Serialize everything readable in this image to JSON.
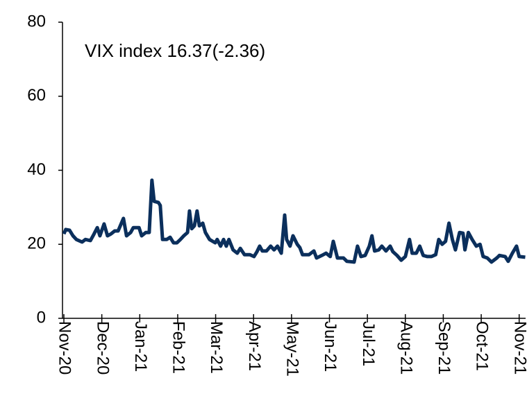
{
  "chart_data": {
    "type": "line",
    "annotation": "VIX index 16.37(-2.36)",
    "xlim": [
      0,
      12.17
    ],
    "xticks": [
      {
        "value": 0,
        "label": "Nov-20"
      },
      {
        "value": 1,
        "label": "Dec-20"
      },
      {
        "value": 2,
        "label": "Jan-21"
      },
      {
        "value": 3,
        "label": "Feb-21"
      },
      {
        "value": 4,
        "label": "Mar-21"
      },
      {
        "value": 5,
        "label": "Apr-21"
      },
      {
        "value": 6,
        "label": "May-21"
      },
      {
        "value": 7,
        "label": "Jun-21"
      },
      {
        "value": 8,
        "label": "Jul-21"
      },
      {
        "value": 9,
        "label": "Aug-21"
      },
      {
        "value": 10,
        "label": "Sep-21"
      },
      {
        "value": 11,
        "label": "Oct-21"
      },
      {
        "value": 12,
        "label": "Nov-21"
      }
    ],
    "ylim": [
      0,
      80
    ],
    "yticks": [
      0,
      20,
      40,
      60,
      80
    ],
    "color": "#0b2f5c",
    "x": [
      0,
      0.05,
      0.15,
      0.24,
      0.33,
      0.48,
      0.57,
      0.7,
      0.79,
      0.88,
      0.95,
      1.06,
      1.15,
      1.24,
      1.34,
      1.43,
      1.57,
      1.65,
      1.76,
      1.83,
      1.91,
      1.98,
      2.05,
      2.16,
      2.25,
      2.32,
      2.38,
      2.49,
      2.54,
      2.6,
      2.71,
      2.8,
      2.89,
      2.98,
      3.07,
      3.16,
      3.26,
      3.31,
      3.37,
      3.44,
      3.51,
      3.57,
      3.66,
      3.73,
      3.84,
      3.99,
      4.04,
      4.13,
      4.21,
      4.28,
      4.35,
      4.46,
      4.57,
      4.65,
      4.76,
      4.9,
      5.01,
      5.09,
      5.16,
      5.23,
      5.34,
      5.45,
      5.54,
      5.63,
      5.73,
      5.82,
      5.87,
      5.96,
      6.04,
      6.15,
      6.22,
      6.29,
      6.46,
      6.59,
      6.66,
      6.8,
      6.91,
      7.02,
      7.1,
      7.21,
      7.37,
      7.46,
      7.65,
      7.74,
      7.83,
      7.94,
      8.05,
      8.12,
      8.19,
      8.3,
      8.38,
      8.49,
      8.6,
      8.67,
      8.78,
      8.89,
      9.0,
      9.11,
      9.18,
      9.29,
      9.38,
      9.47,
      9.58,
      9.69,
      9.8,
      9.88,
      9.97,
      10.06,
      10.15,
      10.24,
      10.32,
      10.43,
      10.52,
      10.57,
      10.66,
      10.76,
      10.87,
      10.97,
      11.05,
      11.16,
      11.27,
      11.41,
      11.48,
      11.63,
      11.71,
      11.82,
      11.93,
      12.0,
      12.16
    ],
    "values": [
      22.8,
      24,
      23.8,
      22.3,
      21.3,
      20.6,
      21.3,
      21,
      22.7,
      24.5,
      22.3,
      25.5,
      22.3,
      22.8,
      23.6,
      23.6,
      27,
      22.3,
      23.2,
      24.5,
      24.5,
      24.5,
      22.3,
      23.2,
      23.2,
      37.3,
      31.6,
      31.3,
      30.5,
      21.3,
      21.3,
      21.9,
      20.4,
      20.4,
      21.3,
      22.3,
      23.2,
      29,
      24.2,
      25,
      29,
      25,
      25.7,
      23.2,
      21.3,
      20.4,
      21.3,
      19.5,
      21.3,
      19.5,
      21.3,
      18.5,
      17.6,
      18.9,
      17.2,
      17.2,
      16.7,
      18,
      19.5,
      18.2,
      18.2,
      19.5,
      18.5,
      19.5,
      17.6,
      27.9,
      21.3,
      19.5,
      22.3,
      20,
      19.1,
      17.2,
      17.2,
      18.2,
      16.3,
      17,
      17.6,
      16.7,
      20.8,
      16.3,
      16.3,
      15.4,
      15.2,
      19.5,
      16.7,
      17,
      19.5,
      22.3,
      18.2,
      18.5,
      19.5,
      18.2,
      19.5,
      18,
      17,
      15.7,
      16.7,
      21.3,
      17.6,
      17.6,
      19.5,
      17,
      16.7,
      16.7,
      17.2,
      21.3,
      20,
      20.8,
      25.7,
      21.3,
      18.5,
      23.2,
      23,
      18.5,
      23.2,
      21.3,
      19.5,
      20,
      16.7,
      16.3,
      15.2,
      16.3,
      17,
      16.7,
      15.4,
      17.6,
      19.5,
      16.7,
      16.5
    ]
  }
}
